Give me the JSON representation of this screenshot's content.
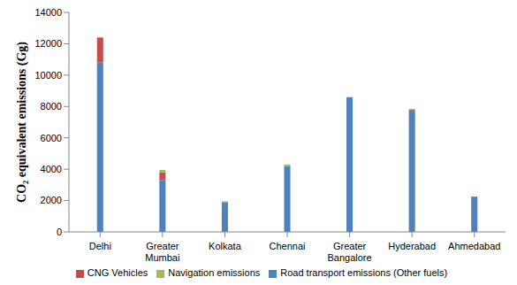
{
  "chart_data": {
    "type": "bar",
    "stacked": true,
    "y_label": "CO₂ equivalent emissions (Gg)",
    "categories": [
      "Delhi",
      "Greater Mumbai",
      "Kolkata",
      "Chennai",
      "Greater Bangalore",
      "Hyderabad",
      "Ahmedabad"
    ],
    "series": [
      {
        "name": "Road transport emissions (Other fuels)",
        "color": "#4f81bd",
        "values": [
          10800,
          3300,
          1900,
          4200,
          8600,
          7750,
          2250
        ]
      },
      {
        "name": "CNG Vehicles",
        "color": "#c0504d",
        "values": [
          1600,
          500,
          0,
          0,
          0,
          50,
          0
        ]
      },
      {
        "name": "Navigation emissions",
        "color": "#9bbb59",
        "values": [
          0,
          150,
          50,
          100,
          0,
          50,
          0
        ]
      }
    ],
    "ylim": [
      0,
      14000
    ],
    "yticks": [
      0,
      2000,
      4000,
      6000,
      8000,
      10000,
      12000,
      14000
    ],
    "grid": false,
    "legend": "bottom"
  }
}
